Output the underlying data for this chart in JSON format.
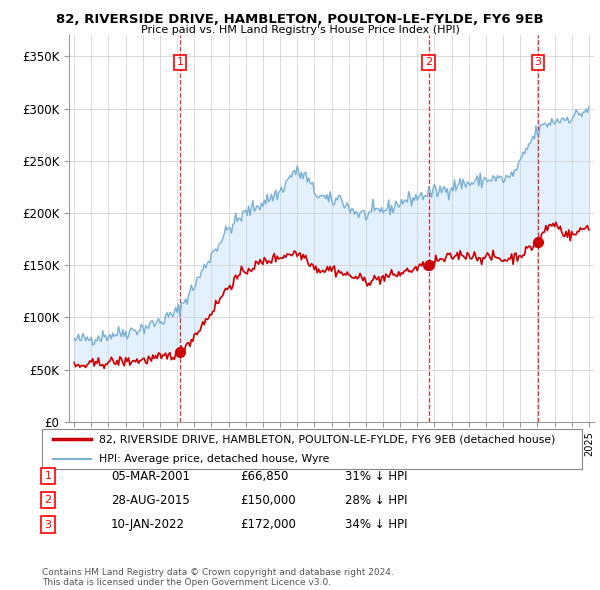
{
  "title": "82, RIVERSIDE DRIVE, HAMBLETON, POULTON-LE-FYLDE, FY6 9EB",
  "subtitle": "Price paid vs. HM Land Registry's House Price Index (HPI)",
  "xlim_start": 1994.7,
  "xlim_end": 2025.3,
  "ylim": [
    0,
    370000
  ],
  "yticks": [
    0,
    50000,
    100000,
    150000,
    200000,
    250000,
    300000,
    350000
  ],
  "ytick_labels": [
    "£0",
    "£50K",
    "£100K",
    "£150K",
    "£200K",
    "£250K",
    "£300K",
    "£350K"
  ],
  "sale_dates": [
    2001.17,
    2015.66,
    2022.03
  ],
  "sale_prices": [
    66850,
    150000,
    172000
  ],
  "sale_labels": [
    "1",
    "2",
    "3"
  ],
  "vline_color": "#cc0000",
  "dot_color": "#cc0000",
  "property_line_color": "#cc0000",
  "hpi_line_color": "#7ab0d4",
  "fill_color": "#ddeeff",
  "legend_property": "82, RIVERSIDE DRIVE, HAMBLETON, POULTON-LE-FYLDE, FY6 9EB (detached house)",
  "legend_hpi": "HPI: Average price, detached house, Wyre",
  "table_rows": [
    [
      "1",
      "05-MAR-2001",
      "£66,850",
      "31% ↓ HPI"
    ],
    [
      "2",
      "28-AUG-2015",
      "£150,000",
      "28% ↓ HPI"
    ],
    [
      "3",
      "10-JAN-2022",
      "£172,000",
      "34% ↓ HPI"
    ]
  ],
  "footnote": "Contains HM Land Registry data © Crown copyright and database right 2024.\nThis data is licensed under the Open Government Licence v3.0.",
  "background_color": "#ffffff"
}
